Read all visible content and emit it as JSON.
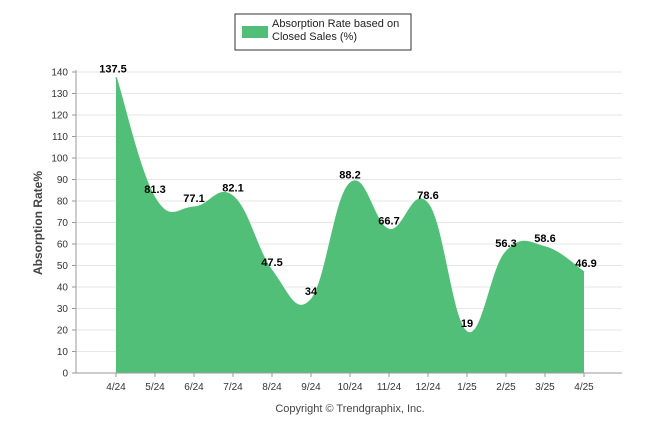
{
  "chart_data": {
    "type": "area",
    "title": "",
    "xlabel": "",
    "ylabel": "Absorption Rate%",
    "categories": [
      "4/24",
      "5/24",
      "6/24",
      "7/24",
      "8/24",
      "9/24",
      "10/24",
      "11/24",
      "12/24",
      "1/25",
      "2/25",
      "3/25",
      "4/25"
    ],
    "series": [
      {
        "name": "Absorption Rate based on Closed Sales (%)",
        "values": [
          137.5,
          81.3,
          77.1,
          82.1,
          47.5,
          34,
          88.2,
          66.7,
          78.6,
          19,
          56.3,
          58.6,
          46.9
        ],
        "labels": [
          "137.5",
          "81.3",
          "77.1",
          "82.1",
          "47.5",
          "34",
          "88.2",
          "66.7",
          "78.6",
          "19",
          "56.3",
          "58.6",
          "46.9"
        ]
      }
    ],
    "ylim": [
      0,
      140
    ],
    "yticks": [
      "0",
      "10",
      "20",
      "30",
      "40",
      "50",
      "60",
      "70",
      "80",
      "90",
      "100",
      "110",
      "120",
      "130",
      "140"
    ],
    "grid": true,
    "legend_position": "top-center",
    "fill_color": "#52bf78",
    "grid_color": "#e6e6e6"
  },
  "footer": {
    "copyright": "Copyright © Trendgraphix, Inc."
  }
}
